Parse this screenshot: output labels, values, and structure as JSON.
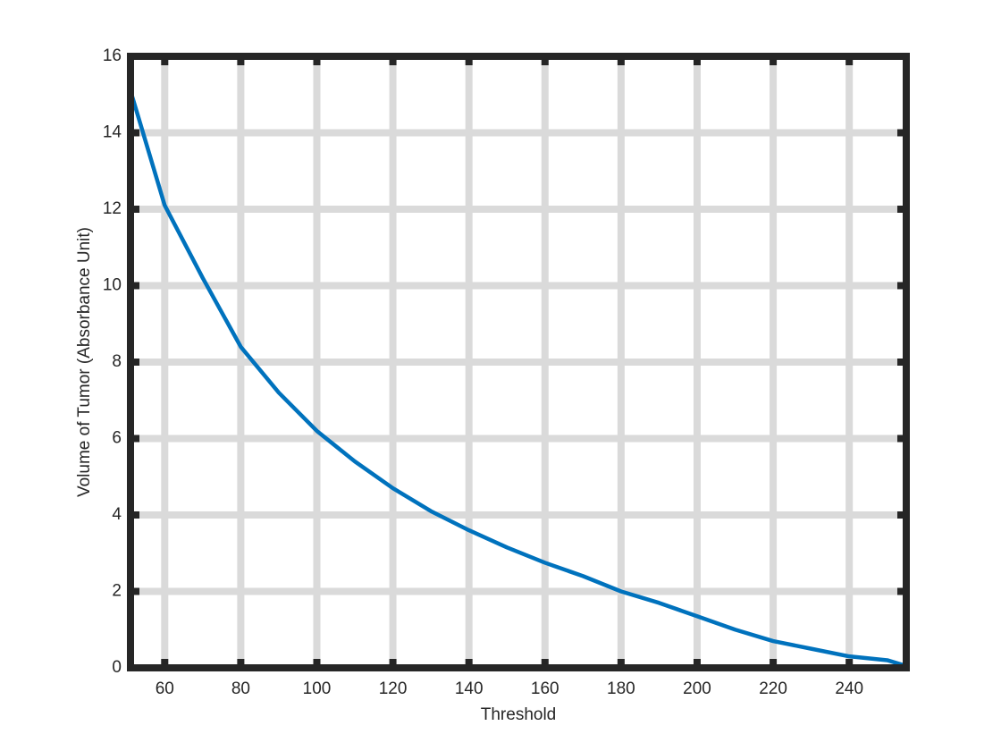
{
  "chart_data": {
    "type": "line",
    "x_label": "Threshold",
    "y_label": "Volume of Tumor (Absorbance Unit)",
    "x": [
      51,
      60,
      70,
      80,
      90,
      100,
      110,
      120,
      130,
      140,
      150,
      160,
      170,
      180,
      190,
      200,
      210,
      220,
      230,
      240,
      250,
      255
    ],
    "series": [
      {
        "color": "#0072bd",
        "values": [
          15.1,
          12.1,
          10.2,
          8.4,
          7.2,
          6.2,
          5.4,
          4.7,
          4.1,
          3.6,
          3.15,
          2.75,
          2.4,
          2.0,
          1.7,
          1.35,
          1.0,
          0.7,
          0.5,
          0.3,
          0.2,
          0.05
        ]
      }
    ],
    "xlim": [
      51,
      255
    ],
    "ylim": [
      0,
      16
    ],
    "xticks": [
      60,
      80,
      100,
      120,
      140,
      160,
      180,
      200,
      220,
      240
    ],
    "yticks": [
      0,
      2,
      4,
      6,
      8,
      10,
      12,
      14,
      16
    ],
    "grid": true
  }
}
